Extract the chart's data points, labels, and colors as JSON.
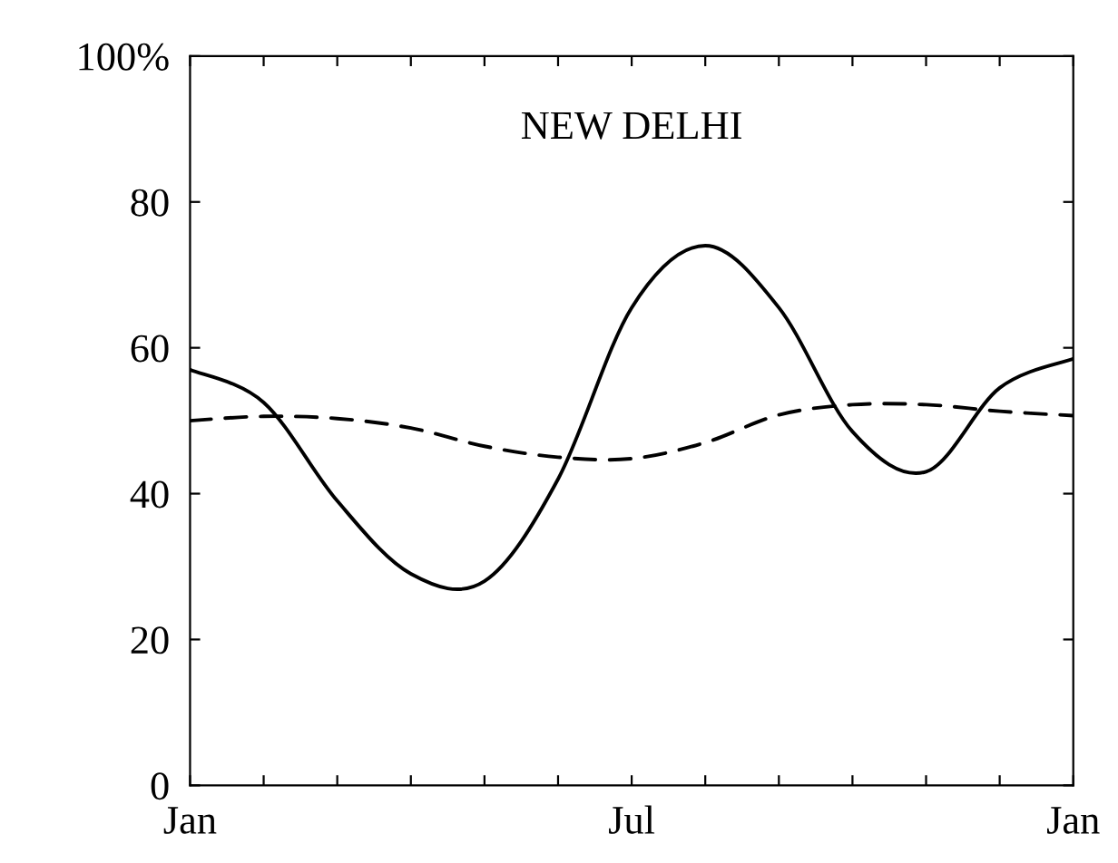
{
  "chart_data": {
    "type": "line",
    "title": "NEW DELHI",
    "categories": [
      "Jan",
      null,
      null,
      null,
      null,
      null,
      "Jul",
      null,
      null,
      null,
      null,
      null,
      "Jan"
    ],
    "ylim": [
      0,
      100
    ],
    "yticks": [
      0,
      20,
      40,
      60,
      80,
      {
        "value": 100,
        "label": "100%"
      }
    ],
    "grid": false,
    "legend": false,
    "marker": "none",
    "series": [
      {
        "color": "#000000",
        "line_style": "solid",
        "values": [
          57,
          52.5,
          39,
          29,
          28,
          42,
          65.5,
          74,
          65.5,
          48.5,
          43,
          54.5,
          58.5
        ]
      },
      {
        "color": "#000000",
        "line_style": "dashed",
        "values": [
          50,
          50.6,
          50.3,
          49,
          46.5,
          45,
          44.8,
          47,
          50.8,
          52.2,
          52.2,
          51.3,
          50.7
        ]
      }
    ]
  }
}
